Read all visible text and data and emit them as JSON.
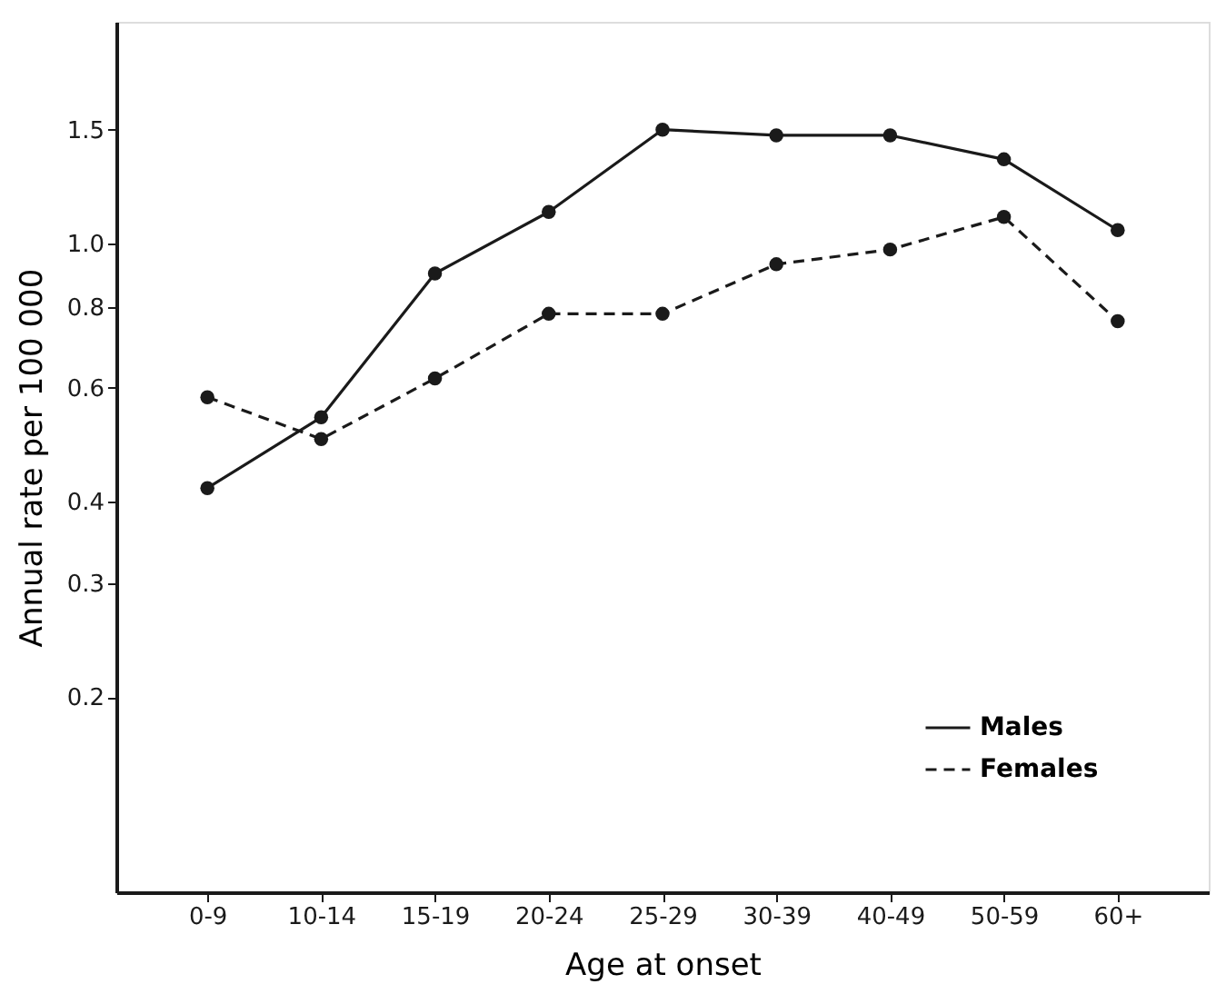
{
  "chart_data": {
    "type": "line",
    "xlabel": "Age at onset",
    "ylabel": "Annual rate per 100 000",
    "log": "y",
    "categories": [
      "0-9",
      "10-14",
      "15-19",
      "20-24",
      "25-29",
      "30-39",
      "40-49",
      "50-59",
      "60+"
    ],
    "ylim": [
      0.1,
      2.2
    ],
    "yticks": [
      0.2,
      0.3,
      0.4,
      0.6,
      0.8,
      {
        "value": 1.0,
        "label": "1.0"
      },
      1.5
    ],
    "series": [
      {
        "name": "Males",
        "color": "#1a1a1a",
        "line_style": "solid",
        "values": [
          0.42,
          0.54,
          0.9,
          1.12,
          1.5,
          1.47,
          1.47,
          1.35,
          1.05
        ]
      },
      {
        "name": "Females",
        "color": "#1a1a1a",
        "line_style": "dashed",
        "values": [
          0.58,
          0.5,
          0.62,
          0.78,
          0.78,
          0.93,
          0.98,
          1.1,
          0.76
        ]
      }
    ],
    "marker": "circle",
    "grid": false,
    "legend": "bottom right"
  }
}
